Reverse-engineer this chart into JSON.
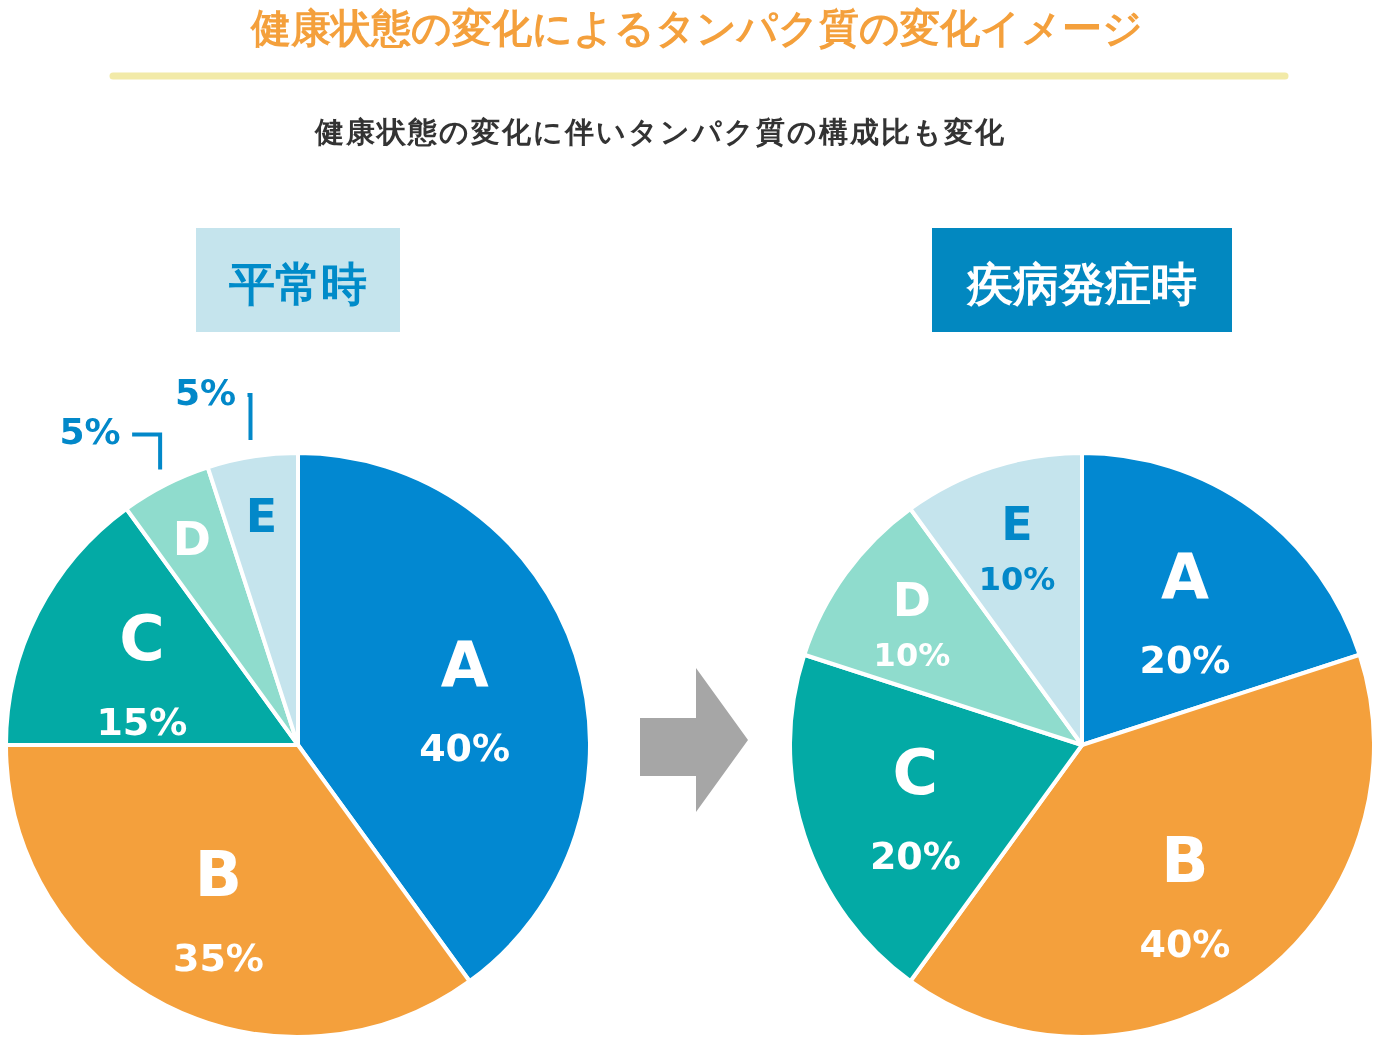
{
  "chart_data": [
    {
      "type": "other",
      "title": "健康状態の変化によるタンパク質の変化イメージ",
      "subtitle": "健康状態の変化に伴いタンパク質の構成比も変化"
    },
    {
      "type": "pie",
      "title": "平常時",
      "categories": [
        "A",
        "B",
        "C",
        "D",
        "E"
      ],
      "values": [
        40,
        35,
        15,
        5,
        5
      ],
      "value_labels": [
        "40%",
        "35%",
        "15%",
        "5%",
        "5%"
      ],
      "colors": [
        "#0288d1",
        "#f4a03c",
        "#03aaa5",
        "#8fdccd",
        "#c5e4ed"
      ]
    },
    {
      "type": "pie",
      "title": "疾病発症時",
      "categories": [
        "A",
        "B",
        "C",
        "D",
        "E"
      ],
      "values": [
        20,
        40,
        20,
        10,
        10
      ],
      "value_labels": [
        "20%",
        "40%",
        "20%",
        "10%",
        "10%"
      ],
      "colors": [
        "#0288d1",
        "#f4a03c",
        "#03aaa5",
        "#8fdccd",
        "#c5e4ed"
      ]
    }
  ]
}
